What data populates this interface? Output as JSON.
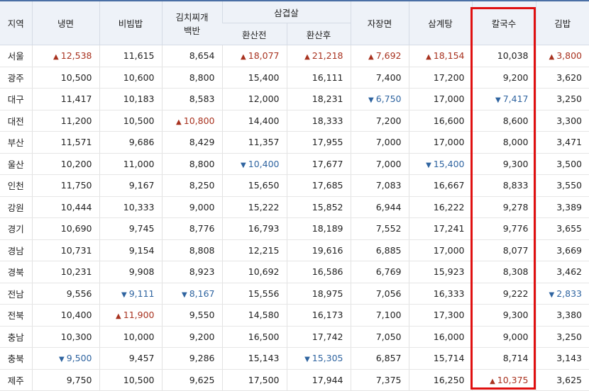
{
  "header": {
    "region": "지역",
    "columns": [
      "냉면",
      "비빔밥",
      "김치찌개 백반",
      "삼겹살",
      "자장면",
      "삼계탕",
      "칼국수",
      "김밥"
    ],
    "subcolumns": [
      "환산전",
      "환산후"
    ]
  },
  "rows": [
    {
      "region": "서울",
      "values": [
        "12,538",
        "11,615",
        "8,654",
        "18,077",
        "21,218",
        "7,692",
        "18,154",
        "10,038",
        "3,800"
      ]
    },
    {
      "region": "광주",
      "values": [
        "10,500",
        "10,600",
        "8,800",
        "15,400",
        "16,111",
        "7,400",
        "17,200",
        "9,200",
        "3,620"
      ]
    },
    {
      "region": "대구",
      "values": [
        "11,417",
        "10,183",
        "8,583",
        "12,000",
        "18,231",
        "6,750",
        "17,000",
        "7,417",
        "3,250"
      ]
    },
    {
      "region": "대전",
      "values": [
        "11,200",
        "10,500",
        "10,800",
        "14,400",
        "18,333",
        "7,200",
        "16,600",
        "8,600",
        "3,300"
      ]
    },
    {
      "region": "부산",
      "values": [
        "11,571",
        "9,686",
        "8,429",
        "11,357",
        "17,955",
        "7,000",
        "17,000",
        "8,000",
        "3,471"
      ]
    },
    {
      "region": "울산",
      "values": [
        "10,200",
        "11,000",
        "8,800",
        "10,400",
        "17,677",
        "7,000",
        "15,400",
        "9,300",
        "3,500"
      ]
    },
    {
      "region": "인천",
      "values": [
        "11,750",
        "9,167",
        "8,250",
        "15,650",
        "17,685",
        "7,083",
        "16,667",
        "8,833",
        "3,550"
      ]
    },
    {
      "region": "강원",
      "values": [
        "10,444",
        "10,333",
        "9,000",
        "15,222",
        "15,852",
        "6,944",
        "16,222",
        "9,278",
        "3,389"
      ]
    },
    {
      "region": "경기",
      "values": [
        "10,690",
        "9,745",
        "8,776",
        "16,793",
        "18,189",
        "7,552",
        "17,241",
        "9,776",
        "3,655"
      ]
    },
    {
      "region": "경남",
      "values": [
        "10,731",
        "9,154",
        "8,808",
        "12,215",
        "19,616",
        "6,885",
        "17,000",
        "8,077",
        "3,669"
      ]
    },
    {
      "region": "경북",
      "values": [
        "10,231",
        "9,908",
        "8,923",
        "10,692",
        "16,586",
        "6,769",
        "15,923",
        "8,308",
        "3,462"
      ]
    },
    {
      "region": "전남",
      "values": [
        "9,556",
        "9,111",
        "8,167",
        "15,556",
        "18,975",
        "7,056",
        "16,333",
        "9,222",
        "2,833"
      ]
    },
    {
      "region": "전북",
      "values": [
        "10,400",
        "11,900",
        "9,550",
        "14,580",
        "16,173",
        "7,100",
        "17,300",
        "9,300",
        "3,380"
      ]
    },
    {
      "region": "충남",
      "values": [
        "10,300",
        "10,000",
        "9,200",
        "16,500",
        "17,742",
        "7,050",
        "16,000",
        "9,000",
        "3,250"
      ]
    },
    {
      "region": "충북",
      "values": [
        "9,500",
        "9,457",
        "9,286",
        "15,143",
        "15,305",
        "6,857",
        "15,714",
        "8,714",
        "3,143"
      ]
    },
    {
      "region": "제주",
      "values": [
        "9,750",
        "10,500",
        "9,625",
        "17,500",
        "17,944",
        "7,375",
        "16,250",
        "10,375",
        "3,625"
      ]
    }
  ]
}
